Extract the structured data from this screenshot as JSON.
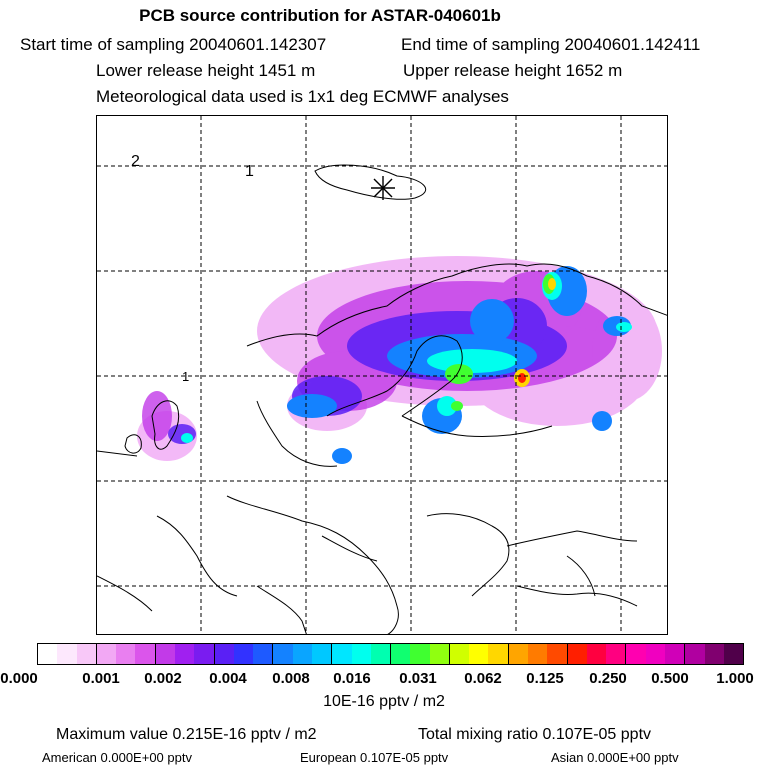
{
  "header": {
    "title": "PCB source contribution for ASTAR-040601b",
    "start_time": "Start time of sampling 20040601.142307",
    "end_time": "End time of sampling 20040601.142411",
    "lower_height": "Lower release height 1451 m",
    "upper_height": "Upper release height 1652 m",
    "met_data": "Meteorological data used is 1x1 deg ECMWF analyses"
  },
  "map": {
    "grid_labels": [
      "2",
      "1",
      "1"
    ],
    "release_marker": "release-site-star"
  },
  "colorbar": {
    "colors": [
      "#ffffff",
      "#fde8fd",
      "#f8c8f8",
      "#f2a8f4",
      "#e97ff0",
      "#db55eb",
      "#c23ae8",
      "#a020f0",
      "#7a1cf0",
      "#5a20f5",
      "#3232ff",
      "#1e5aff",
      "#1482ff",
      "#0aa5ff",
      "#00c8ff",
      "#00e6ff",
      "#00ffee",
      "#00ffb0",
      "#10ff70",
      "#40ff30",
      "#90ff10",
      "#d0ff00",
      "#ffff00",
      "#ffd700",
      "#ffa500",
      "#ff7b00",
      "#ff4a00",
      "#ff1f00",
      "#ff0040",
      "#ff0080",
      "#ff00b0",
      "#f000c0",
      "#d000b8",
      "#b000a0",
      "#80006f",
      "#50004a"
    ],
    "tick_labels": [
      "0.000",
      "0.001",
      "0.002",
      "0.004",
      "0.008",
      "0.016",
      "0.031",
      "0.062",
      "0.125",
      "0.250",
      "0.500",
      "1.000"
    ],
    "unit": "10E-16 pptv / m2"
  },
  "stats": {
    "max_value": "Maximum value  0.215E-16 pptv / m2",
    "total_mixing": "Total mixing ratio  0.107E-05 pptv",
    "american": "American  0.000E+00 pptv",
    "european": "European  0.107E-05 pptv",
    "asian": "Asian  0.000E+00 pptv"
  }
}
